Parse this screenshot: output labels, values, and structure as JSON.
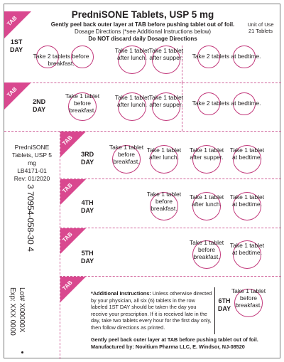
{
  "header": {
    "title": "PredniSONE Tablets, USP 5 mg",
    "line1": "Gently peel back outer layer at TAB before pushing tablet out of foil.",
    "line2": "Dosage Directions (*see Additional Instructions below)",
    "line3": "Do NOT discard daily Dosage Directions",
    "unit_of_use": "Unit of Use",
    "tablet_count": "21 Tablets"
  },
  "tab_label": "TAB",
  "days": {
    "d1": "1ST\nDAY",
    "d2": "2ND\nDAY",
    "d3": "3RD\nDAY",
    "d4": "4TH\nDAY",
    "d5": "5TH\nDAY",
    "d6": "6TH\nDAY"
  },
  "doses": {
    "two_breakfast": "Take 2 tablets before breakfast.",
    "one_lunch": "Take 1 tablet after lunch.",
    "one_supper": "Take 1 tablet after supper.",
    "two_bedtime": "Take 2 tablets at bedtime.",
    "one_breakfast": "Take 1 tablet before breakfast.",
    "one_bedtime": "Take 1 tablet at bedtime."
  },
  "product_block": {
    "name": "PredniSONE Tablets, USP 5 mg",
    "code": "LB4171-01",
    "rev": "Rev: 01/2020"
  },
  "barcode_text": "3 70954-058-30 4",
  "lot": "Lot# X00000X",
  "exp": "Exp: XXX 0000",
  "instructions": {
    "heading": "*Additional Instructions:",
    "body": "Unless otherwise directed by your physician, all six (6) tablets in the row labeled 1ST DAY should be taken the day you receive your prescription. If it is received late in the day, take two tablets every hour for the first day only, then follow directions as printed.",
    "footer1": "Gently peel back outer layer at TAB before pushing tablet out of foil.",
    "footer2": "Manufactured by: Novitium Pharma LLC, E. Windsor, NJ-08520"
  },
  "colors": {
    "accent": "#c2387b",
    "tab_fill": "#d9488f",
    "text": "#231f20"
  }
}
